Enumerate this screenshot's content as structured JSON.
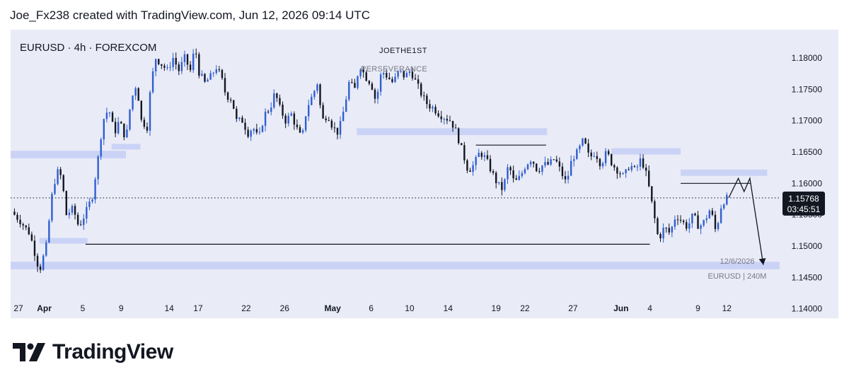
{
  "header": {
    "attribution": "Joe_Fx238 created with TradingView.com, Jun 12, 2026 09:14 UTC"
  },
  "brand": {
    "name": "TradingView",
    "logo_icon": "tradingview-logo-icon"
  },
  "colors": {
    "panel_bg": "#e9ebf7",
    "zone": "#c6d0f4",
    "bull": "#2f5fd0",
    "bear": "#131722",
    "price_label_bg": "#131722",
    "axis_text": "#131722",
    "muted_text": "#787b86"
  },
  "chart_data": {
    "type": "candlestick",
    "symbol_title": "EURUSD · 4h · FOREXCOM",
    "annotations": {
      "top_label": "JOETHE1ST",
      "sub_label": "PERSEVERANCE",
      "date_note": "12/6/2026",
      "symbol_note": "EURUSD | 240M"
    },
    "last_price": {
      "value": "1.15768",
      "countdown": "03:45:51",
      "price": 1.15768
    },
    "ylim": [
      1.1385,
      1.1845
    ],
    "y_ticks": [
      {
        "value": 1.18,
        "label": "1.18000"
      },
      {
        "value": 1.175,
        "label": "1.17500"
      },
      {
        "value": 1.17,
        "label": "1.17000"
      },
      {
        "value": 1.165,
        "label": "1.16500"
      },
      {
        "value": 1.16,
        "label": "1.16000"
      },
      {
        "value": 1.155,
        "label": "1.15500"
      },
      {
        "value": 1.15,
        "label": "1.15000"
      },
      {
        "value": 1.145,
        "label": "1.14500"
      },
      {
        "value": 1.14,
        "label": "1.14000"
      }
    ],
    "x_ticks": [
      {
        "label": "27",
        "x": -1,
        "bold": false
      },
      {
        "label": "Apr",
        "x": 2,
        "bold": true
      },
      {
        "label": "5",
        "x": 6,
        "bold": false
      },
      {
        "label": "9",
        "x": 10,
        "bold": false
      },
      {
        "label": "14",
        "x": 15,
        "bold": false
      },
      {
        "label": "17",
        "x": 18,
        "bold": false
      },
      {
        "label": "22",
        "x": 23,
        "bold": false
      },
      {
        "label": "26",
        "x": 27,
        "bold": false
      },
      {
        "label": "May",
        "x": 32,
        "bold": true
      },
      {
        "label": "6",
        "x": 36,
        "bold": false
      },
      {
        "label": "10",
        "x": 40,
        "bold": false
      },
      {
        "label": "14",
        "x": 44,
        "bold": false
      },
      {
        "label": "19",
        "x": 49,
        "bold": false
      },
      {
        "label": "22",
        "x": 52,
        "bold": false
      },
      {
        "label": "27",
        "x": 57,
        "bold": false
      },
      {
        "label": "Jun",
        "x": 62,
        "bold": true
      },
      {
        "label": "4",
        "x": 65,
        "bold": false
      },
      {
        "label": "9",
        "x": 70,
        "bold": false
      },
      {
        "label": "12",
        "x": 73,
        "bold": false
      }
    ],
    "x_range": [
      -1.5,
      78.5
    ],
    "path": [
      [
        -1.4,
        1.1555
      ],
      [
        -0.5,
        1.154
      ],
      [
        0.5,
        1.152
      ],
      [
        1.0,
        1.149
      ],
      [
        1.5,
        1.146
      ],
      [
        2.2,
        1.15
      ],
      [
        2.8,
        1.158
      ],
      [
        3.3,
        1.162
      ],
      [
        3.8,
        1.161
      ],
      [
        4.3,
        1.155
      ],
      [
        5.0,
        1.156
      ],
      [
        5.6,
        1.153
      ],
      [
        6.5,
        1.156
      ],
      [
        7.0,
        1.158
      ],
      [
        7.6,
        1.164
      ],
      [
        8.1,
        1.17
      ],
      [
        8.7,
        1.172
      ],
      [
        9.3,
        1.168
      ],
      [
        9.8,
        1.17
      ],
      [
        10.5,
        1.167
      ],
      [
        11.0,
        1.173
      ],
      [
        11.6,
        1.176
      ],
      [
        12.1,
        1.17
      ],
      [
        12.7,
        1.169
      ],
      [
        13.1,
        1.176
      ],
      [
        13.6,
        1.18
      ],
      [
        14.2,
        1.179
      ],
      [
        14.8,
        1.178
      ],
      [
        15.4,
        1.18
      ],
      [
        16.0,
        1.178
      ],
      [
        16.6,
        1.18
      ],
      [
        17.2,
        1.178
      ],
      [
        17.7,
        1.182
      ],
      [
        18.0,
        1.178
      ],
      [
        18.7,
        1.176
      ],
      [
        19.3,
        1.177
      ],
      [
        19.9,
        1.1785
      ],
      [
        20.4,
        1.177
      ],
      [
        20.9,
        1.174
      ],
      [
        21.5,
        1.1735
      ],
      [
        22.0,
        1.17
      ],
      [
        22.6,
        1.17
      ],
      [
        23.2,
        1.168
      ],
      [
        23.7,
        1.169
      ],
      [
        24.3,
        1.167
      ],
      [
        24.9,
        1.171
      ],
      [
        25.5,
        1.172
      ],
      [
        26.0,
        1.1745
      ],
      [
        26.5,
        1.172
      ],
      [
        27.1,
        1.17
      ],
      [
        27.7,
        1.171
      ],
      [
        28.2,
        1.169
      ],
      [
        28.8,
        1.167
      ],
      [
        29.3,
        1.172
      ],
      [
        29.9,
        1.174
      ],
      [
        30.4,
        1.176
      ],
      [
        30.9,
        1.17
      ],
      [
        31.5,
        1.171
      ],
      [
        32.0,
        1.169
      ],
      [
        32.6,
        1.168
      ],
      [
        33.2,
        1.172
      ],
      [
        33.7,
        1.176
      ],
      [
        34.3,
        1.175
      ],
      [
        34.8,
        1.179
      ],
      [
        35.4,
        1.177
      ],
      [
        36.0,
        1.176
      ],
      [
        36.5,
        1.173
      ],
      [
        37.1,
        1.178
      ],
      [
        37.7,
        1.177
      ],
      [
        38.3,
        1.176
      ],
      [
        38.9,
        1.178
      ],
      [
        39.5,
        1.177
      ],
      [
        40.1,
        1.178
      ],
      [
        40.7,
        1.176
      ],
      [
        41.3,
        1.174
      ],
      [
        41.9,
        1.1725
      ],
      [
        42.5,
        1.172
      ],
      [
        43.1,
        1.171
      ],
      [
        43.7,
        1.1705
      ],
      [
        44.3,
        1.17
      ],
      [
        44.9,
        1.168
      ],
      [
        45.5,
        1.165
      ],
      [
        46.1,
        1.162
      ],
      [
        46.7,
        1.163
      ],
      [
        47.3,
        1.165
      ],
      [
        47.9,
        1.164
      ],
      [
        48.5,
        1.162
      ],
      [
        49.1,
        1.16
      ],
      [
        49.7,
        1.159
      ],
      [
        50.3,
        1.163
      ],
      [
        50.9,
        1.16
      ],
      [
        51.5,
        1.161
      ],
      [
        52.1,
        1.163
      ],
      [
        52.7,
        1.164
      ],
      [
        53.3,
        1.162
      ],
      [
        53.9,
        1.163
      ],
      [
        54.5,
        1.163
      ],
      [
        55.1,
        1.164
      ],
      [
        55.7,
        1.162
      ],
      [
        56.3,
        1.16
      ],
      [
        56.9,
        1.164
      ],
      [
        57.5,
        1.165
      ],
      [
        58.1,
        1.167
      ],
      [
        58.7,
        1.164
      ],
      [
        59.3,
        1.165
      ],
      [
        59.9,
        1.163
      ],
      [
        60.5,
        1.165
      ],
      [
        61.1,
        1.163
      ],
      [
        61.7,
        1.162
      ],
      [
        62.3,
        1.161
      ],
      [
        62.9,
        1.163
      ],
      [
        63.5,
        1.162
      ],
      [
        64.1,
        1.164
      ],
      [
        64.7,
        1.161
      ],
      [
        65.3,
        1.156
      ],
      [
        65.9,
        1.151
      ],
      [
        66.5,
        1.153
      ],
      [
        67.1,
        1.152
      ],
      [
        67.7,
        1.155
      ],
      [
        68.3,
        1.154
      ],
      [
        68.9,
        1.153
      ],
      [
        69.5,
        1.155
      ],
      [
        70.1,
        1.153
      ],
      [
        70.7,
        1.154
      ],
      [
        71.3,
        1.156
      ],
      [
        71.9,
        1.152
      ],
      [
        72.3,
        1.156
      ],
      [
        72.8,
        1.1575
      ],
      [
        73.2,
        1.1577
      ]
    ],
    "zones": [
      {
        "x1": -1.5,
        "x2": 10.5,
        "y1": 1.164,
        "y2": 1.1652
      },
      {
        "x1": 9.0,
        "x2": 12.0,
        "y1": 1.1654,
        "y2": 1.1663
      },
      {
        "x1": 1.5,
        "x2": 6.5,
        "y1": 1.1504,
        "y2": 1.1513
      },
      {
        "x1": 34.5,
        "x2": 54.3,
        "y1": 1.1677,
        "y2": 1.1688
      },
      {
        "x1": 61.0,
        "x2": 68.2,
        "y1": 1.1646,
        "y2": 1.1656
      },
      {
        "x1": 68.2,
        "x2": 77.2,
        "y1": 1.1612,
        "y2": 1.1622
      },
      {
        "x1": -1.5,
        "x2": 78.5,
        "y1": 1.1463,
        "y2": 1.1475
      }
    ],
    "lines": [
      {
        "x1": 6.3,
        "y1": 1.1503,
        "x2": 65.0,
        "y2": 1.1503
      },
      {
        "x1": 46.9,
        "y1": 1.1661,
        "x2": 54.2,
        "y2": 1.1661
      },
      {
        "x1": 68.2,
        "y1": 1.16,
        "x2": 75.5,
        "y2": 1.16
      }
    ],
    "projection": [
      [
        73.2,
        1.1577
      ],
      [
        74.2,
        1.1608
      ],
      [
        74.8,
        1.1587
      ],
      [
        75.4,
        1.1608
      ],
      [
        76.8,
        1.147
      ]
    ]
  }
}
